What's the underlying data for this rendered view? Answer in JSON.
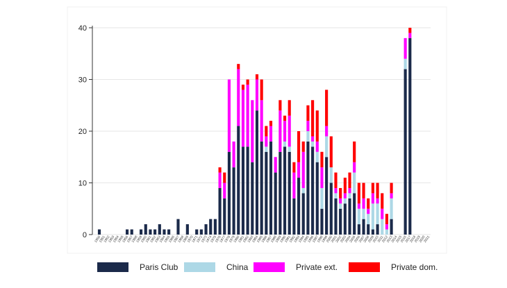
{
  "chart_data": {
    "type": "bar",
    "stacked": true,
    "title": "",
    "xlabel": "",
    "ylabel": "",
    "ylim": [
      0,
      40
    ],
    "yticks": [
      0,
      10,
      20,
      30,
      40
    ],
    "grid": true,
    "legend_position": "bottom",
    "categories": [
      "1950",
      "1951",
      "1952",
      "1953",
      "1954",
      "1955",
      "1956",
      "1957",
      "1958",
      "1959",
      "1960",
      "1961",
      "1962",
      "1963",
      "1964",
      "1965",
      "1966",
      "1967",
      "1968",
      "1969",
      "1970",
      "1971",
      "1972",
      "1973",
      "1974",
      "1975",
      "1976",
      "1977",
      "1978",
      "1979",
      "1980",
      "1981",
      "1982",
      "1983",
      "1984",
      "1985",
      "1986",
      "1987",
      "1988",
      "1989",
      "1990",
      "1991",
      "1992",
      "1993",
      "1994",
      "1995",
      "1996",
      "1997",
      "1998",
      "1999",
      "2000",
      "2001",
      "2002",
      "2003",
      "2004",
      "2005",
      "2006",
      "2007",
      "2008",
      "2009",
      "2010",
      "2011",
      "2012",
      "2013",
      "2014",
      "2015",
      "2016",
      "2017",
      "2018",
      "2019",
      "2020",
      "2021"
    ],
    "series": [
      {
        "name": "Paris Club",
        "color": "#1b2a4a",
        "values": [
          1,
          0,
          0,
          0,
          0,
          0,
          1,
          1,
          0,
          1,
          2,
          1,
          1,
          2,
          1,
          1,
          0,
          3,
          0,
          2,
          0,
          1,
          1,
          2,
          3,
          3,
          9,
          7,
          16,
          13,
          21,
          17,
          17,
          14,
          24,
          18,
          16,
          18,
          12,
          16,
          17,
          16,
          7,
          11,
          8,
          18,
          17,
          14,
          5,
          15,
          10,
          7,
          5,
          6,
          7,
          8,
          2,
          3,
          2,
          1,
          2,
          0,
          0,
          3,
          0,
          0,
          32,
          38,
          0,
          0,
          0,
          0
        ]
      },
      {
        "name": "China",
        "color": "#add8e6",
        "values": [
          0,
          0,
          0,
          0,
          0,
          0,
          0,
          0,
          0,
          0,
          0,
          0,
          0,
          0,
          0,
          0,
          0,
          0,
          0,
          0,
          0,
          0,
          0,
          0,
          0,
          0,
          0,
          0,
          0,
          0,
          0,
          0,
          0,
          0,
          0,
          0,
          1,
          0,
          0,
          0,
          1,
          1,
          0,
          0,
          1,
          2,
          1,
          2,
          4,
          4,
          3,
          1,
          1,
          1,
          1,
          4,
          3,
          2,
          2,
          5,
          4,
          3,
          1,
          4,
          0,
          0,
          2,
          0,
          0,
          0,
          0,
          0
        ]
      },
      {
        "name": "Private ext.",
        "color": "#ff00ff",
        "values": [
          0,
          0,
          0,
          0,
          0,
          0,
          0,
          0,
          0,
          0,
          0,
          0,
          0,
          0,
          0,
          0,
          0,
          0,
          0,
          0,
          0,
          0,
          0,
          0,
          0,
          0,
          3,
          3,
          14,
          5,
          11,
          11,
          12,
          12,
          6,
          8,
          2,
          3,
          3,
          8,
          4,
          6,
          5,
          3,
          7,
          2,
          1,
          2,
          4,
          2,
          0,
          1,
          1,
          1,
          1,
          2,
          1,
          2,
          1,
          2,
          1,
          2,
          1,
          1,
          0,
          0,
          4,
          1,
          0,
          0,
          0,
          0
        ]
      },
      {
        "name": "Private dom.",
        "color": "#ff0000",
        "values": [
          0,
          0,
          0,
          0,
          0,
          0,
          0,
          0,
          0,
          0,
          0,
          0,
          0,
          0,
          0,
          0,
          0,
          0,
          0,
          0,
          0,
          0,
          0,
          0,
          0,
          0,
          1,
          2,
          0,
          0,
          1,
          1,
          1,
          0,
          1,
          4,
          2,
          1,
          0,
          2,
          1,
          3,
          2,
          6,
          2,
          3,
          7,
          6,
          3,
          7,
          6,
          3,
          2,
          3,
          3,
          4,
          4,
          3,
          2,
          2,
          3,
          3,
          2,
          2,
          0,
          0,
          0,
          1,
          0,
          0,
          0,
          0
        ]
      }
    ]
  }
}
